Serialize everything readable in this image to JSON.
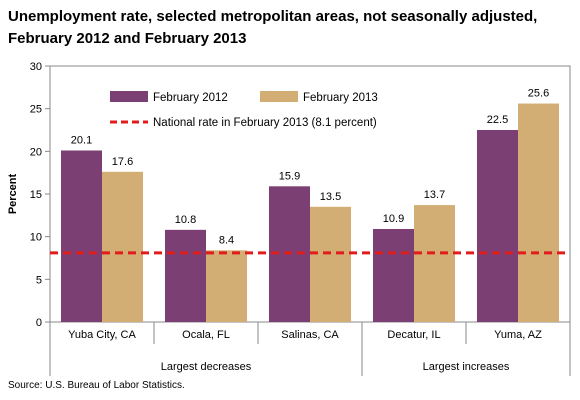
{
  "header": {
    "title_line1": "Unemployment rate, selected metropolitan areas, not seasonally adjusted,",
    "title_line2": "February 2012 and February 2013"
  },
  "footer": {
    "source": "Source: U.S. Bureau of Labor Statistics."
  },
  "chart_data": {
    "type": "bar",
    "title": "Unemployment rate, selected metropolitan areas, not seasonally adjusted, February 2012 and February 2013",
    "xlabel": "",
    "ylabel": "Percent",
    "ylim": [
      0,
      30
    ],
    "yticks": [
      0,
      5,
      10,
      15,
      20,
      25,
      30
    ],
    "grid": false,
    "legend_position": "top",
    "categories": [
      "Yuba City, CA",
      "Ocala, FL",
      "Salinas, CA",
      "Decatur, IL",
      "Yuma, AZ"
    ],
    "groups": [
      {
        "label": "Largest decreases",
        "categories": [
          "Yuba City, CA",
          "Ocala, FL",
          "Salinas, CA"
        ]
      },
      {
        "label": "Largest increases",
        "categories": [
          "Decatur, IL",
          "Yuma, AZ"
        ]
      }
    ],
    "series": [
      {
        "name": "February 2012",
        "color": "#7b3f73",
        "values": [
          20.1,
          10.8,
          15.9,
          10.9,
          22.5
        ]
      },
      {
        "name": "February 2013",
        "color": "#d2ad74",
        "values": [
          17.6,
          8.4,
          13.5,
          13.7,
          25.6
        ]
      }
    ],
    "reference_line": {
      "name": "National rate in February 2013 (8.1 percent)",
      "value": 8.1,
      "color": "#e21b1b"
    }
  }
}
